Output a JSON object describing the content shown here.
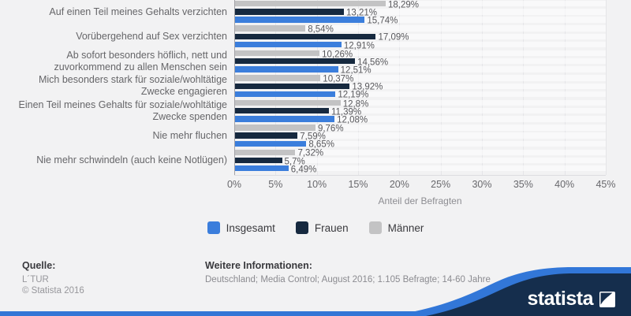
{
  "chart_data": {
    "type": "bar",
    "orientation": "horizontal",
    "categories": [
      "Auf einen Teil meines Gehalts verzichten",
      "Vorübergehend auf Sex verzichten",
      "Ab sofort besonders höflich, nett und zuvorkommend zu allen Menschen sein",
      "Mich besonders stark für soziale/wohltätige Zwecke engagieren",
      "Einen Teil meines Gehalts für soziale/wohltätige Zwecke spenden",
      "Nie mehr fluchen",
      "Nie mehr schwindeln (auch keine Notlügen)"
    ],
    "series": [
      {
        "name": "Insgesamt",
        "color": "#3b7edc",
        "values": [
          15.74,
          12.91,
          12.51,
          12.19,
          12.08,
          8.65,
          6.49
        ],
        "labels": [
          "15,74%",
          "12,91%",
          "12,51%",
          "12,19%",
          "12,08%",
          "8,65%",
          "6,49%"
        ]
      },
      {
        "name": "Frauen",
        "color": "#16293f",
        "values": [
          13.21,
          17.09,
          14.56,
          13.92,
          11.39,
          7.59,
          5.7
        ],
        "labels": [
          "13,21%",
          "17,09%",
          "14,56%",
          "13,92%",
          "11,39%",
          "7,59%",
          "5,7%"
        ]
      },
      {
        "name": "Männer",
        "color": "#c3c3c4",
        "values": [
          18.29,
          8.54,
          10.26,
          10.37,
          12.8,
          9.76,
          7.32
        ],
        "labels": [
          "18,29%",
          "8,54%",
          "10,26%",
          "10,37%",
          "12,8%",
          "9,76%",
          "7,32%"
        ]
      }
    ],
    "display_order_top_to_bottom": [
      "Männer",
      "Frauen",
      "Insgesamt"
    ],
    "xlabel": "Anteil der Befragten",
    "xlim": [
      0,
      45
    ],
    "xtick_values": [
      0,
      5,
      10,
      15,
      20,
      25,
      30,
      35,
      40,
      45
    ],
    "xtick_labels": [
      "0%",
      "5%",
      "10%",
      "15%",
      "20%",
      "25%",
      "30%",
      "35%",
      "40%",
      "45%"
    ],
    "grid": "vertical",
    "legend_position": "bottom"
  },
  "footer": {
    "source_heading": "Quelle:",
    "source_lines": [
      "L´TUR",
      "© Statista 2016"
    ],
    "info_heading": "Weitere Informationen:",
    "info_line": "Deutschland; Media Control; August 2016; 1.105 Befragte; 14-60 Jahre",
    "brand": "statista"
  },
  "colors": {
    "background": "#f2f2f3",
    "bar_insgesamt": "#3b7edc",
    "bar_frauen": "#16293f",
    "bar_maenner": "#c3c3c4",
    "brand_navy": "#152e4d",
    "brand_swoosh_blue": "#3277d8",
    "bottom_strip_blue": "#3376d6"
  }
}
